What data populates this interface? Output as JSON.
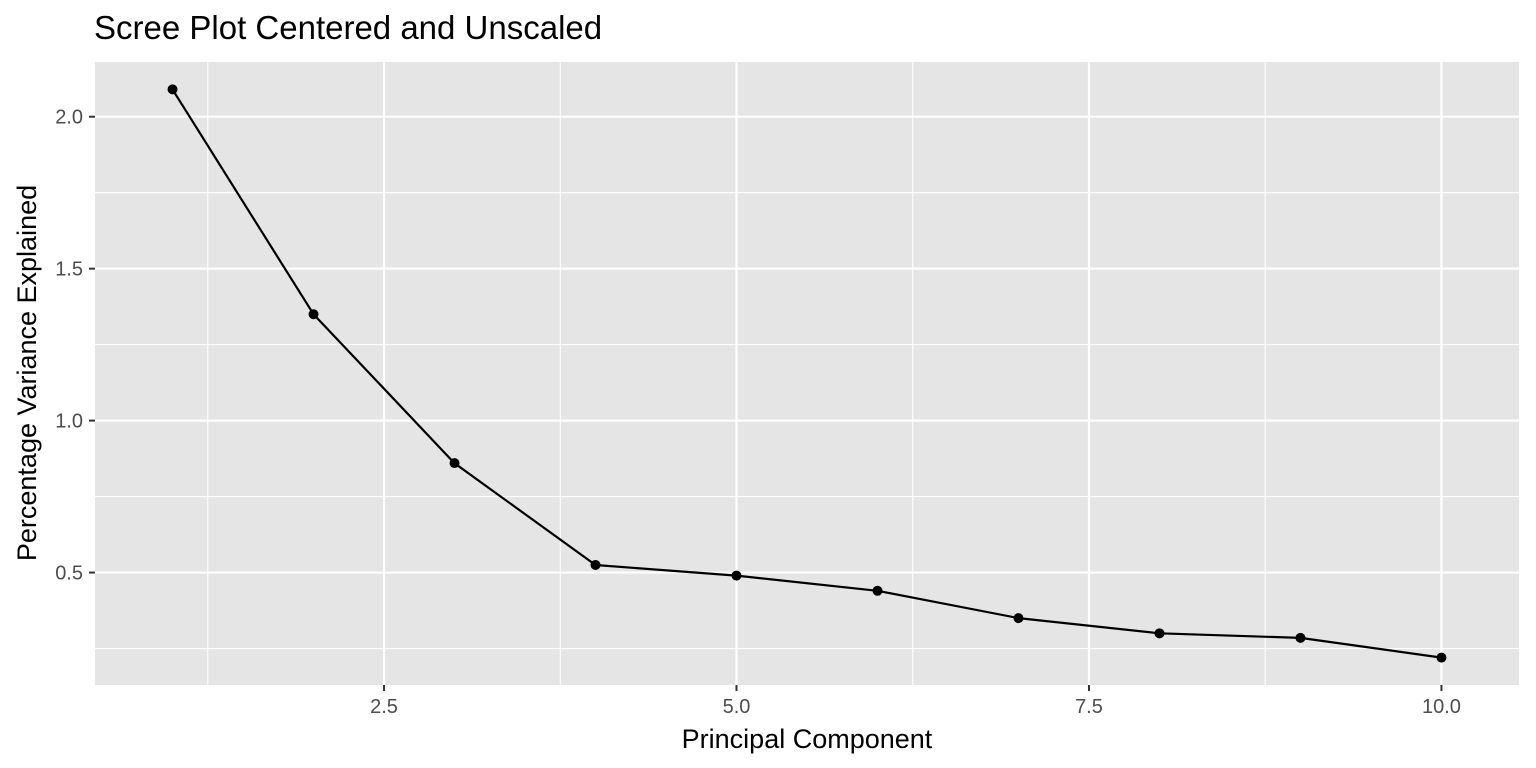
{
  "chart_data": {
    "type": "line",
    "title": "Scree Plot Centered and Unscaled",
    "xlabel": "Principal Component",
    "ylabel": "Percentage Variance Explained",
    "x": [
      1,
      2,
      3,
      4,
      5,
      6,
      7,
      8,
      9,
      10
    ],
    "series": [
      {
        "values": [
          2.09,
          1.35,
          0.86,
          0.525,
          0.49,
          0.44,
          0.35,
          0.3,
          0.285,
          0.22
        ]
      }
    ],
    "xlim": [
      0.45,
      10.55
    ],
    "ylim": [
      0.13,
      2.18
    ],
    "xticks": [
      2.5,
      5.0,
      7.5,
      10.0
    ],
    "xtick_labels": [
      "2.5",
      "5.0",
      "7.5",
      "10.0"
    ],
    "yticks": [
      0.5,
      1.0,
      1.5,
      2.0
    ],
    "ytick_labels": [
      "0.5",
      "1.0",
      "1.5",
      "2.0"
    ],
    "grid": true,
    "legend": "none",
    "colors": {
      "panel_background": "#e5e5e5",
      "grid": "#ffffff",
      "line": "#000000",
      "point": "#000000",
      "tick_label": "#4d4d4d",
      "tick_mark": "#333333"
    }
  }
}
